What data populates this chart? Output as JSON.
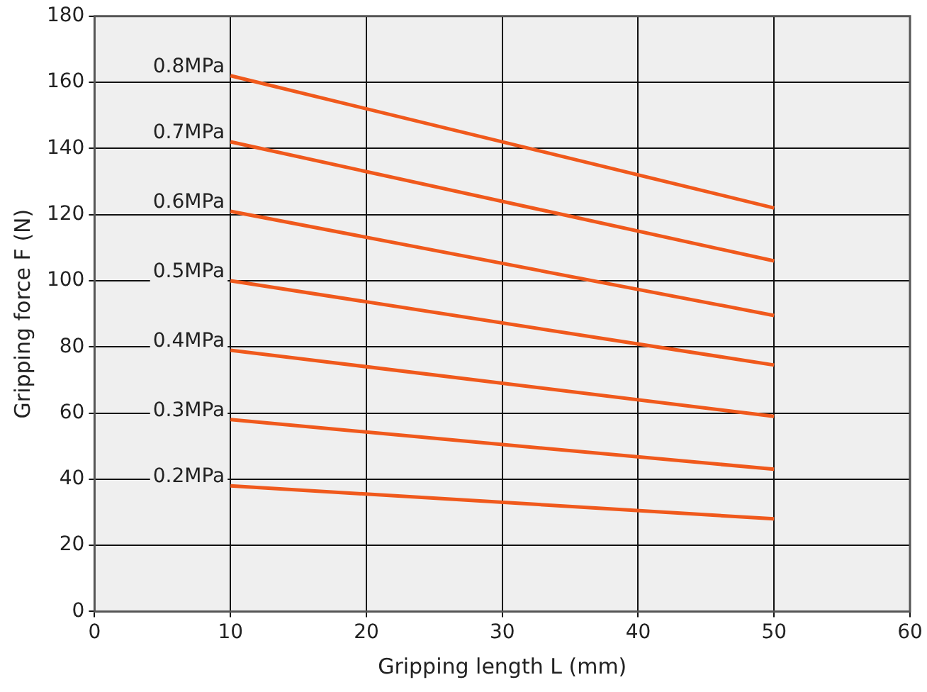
{
  "chart_data": {
    "type": "line",
    "xlabel": "Gripping length L (mm)",
    "ylabel": "Gripping force F (N)",
    "x": [
      10,
      50
    ],
    "series": [
      {
        "name": "0.8MPa",
        "color": "#f0591c",
        "values": [
          162,
          122
        ]
      },
      {
        "name": "0.7MPa",
        "color": "#f0591c",
        "values": [
          142,
          106
        ]
      },
      {
        "name": "0.6MPa",
        "color": "#f0591c",
        "values": [
          121,
          89.5
        ]
      },
      {
        "name": "0.5MPa",
        "color": "#f0591c",
        "values": [
          100,
          74.5
        ]
      },
      {
        "name": "0.4MPa",
        "color": "#f0591c",
        "values": [
          79,
          59
        ]
      },
      {
        "name": "0.3MPa",
        "color": "#f0591c",
        "values": [
          58,
          43
        ]
      },
      {
        "name": "0.2MPa",
        "color": "#f0591c",
        "values": [
          38,
          28
        ]
      }
    ],
    "xlim": [
      0,
      60
    ],
    "xticks": [
      0,
      10,
      20,
      30,
      40,
      50,
      60
    ],
    "ylim": [
      0,
      180
    ],
    "yticks": [
      0,
      20,
      40,
      60,
      80,
      100,
      120,
      140,
      160,
      180
    ],
    "grid": true,
    "legend": false,
    "marker": "none",
    "line_style": "solid"
  }
}
